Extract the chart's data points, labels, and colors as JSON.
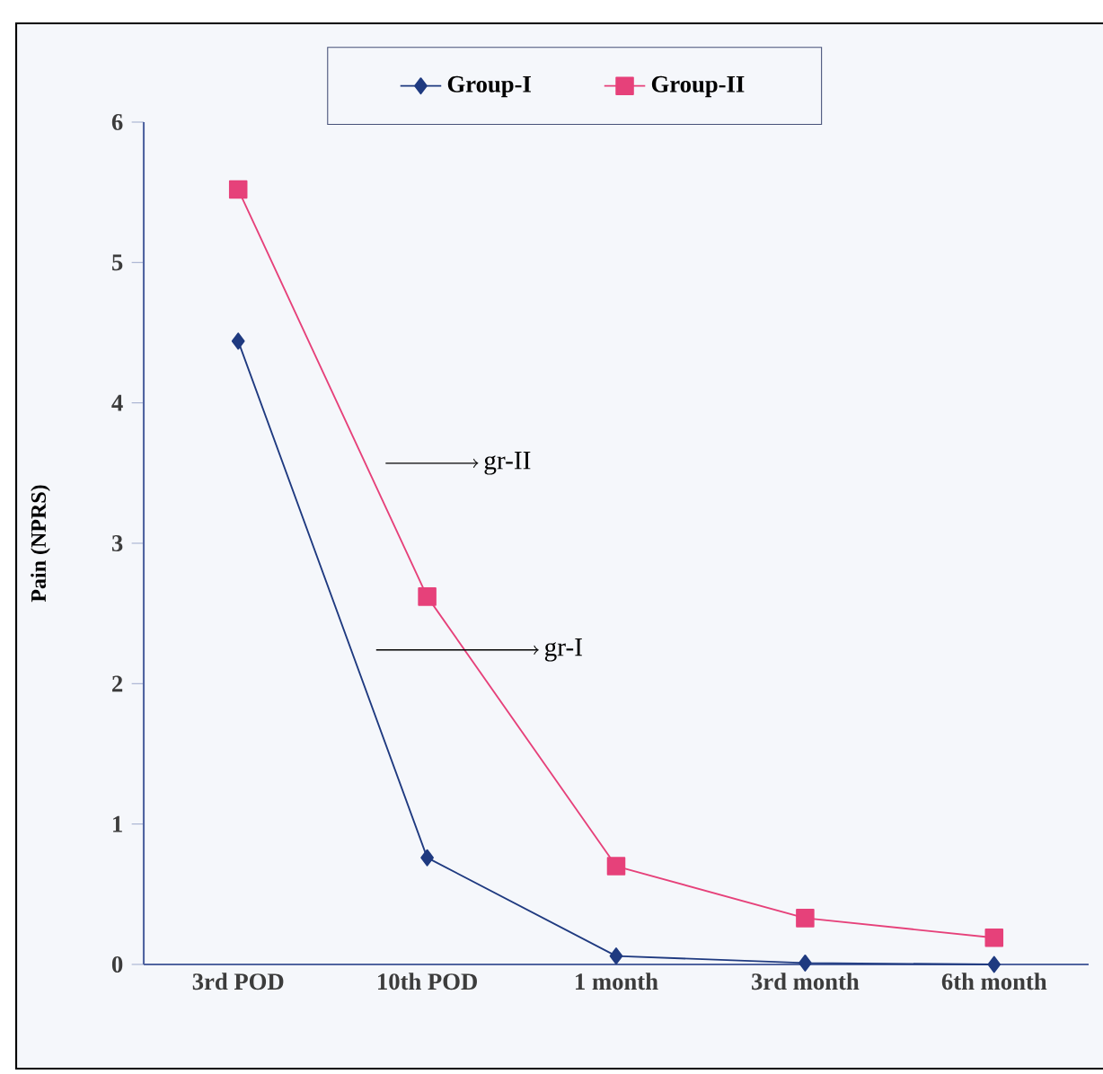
{
  "chart_data": {
    "type": "line",
    "ylabel": "Pain (NPRS)",
    "categories": [
      "3rd POD",
      "10th POD",
      "1 month",
      "3rd month",
      "6th month"
    ],
    "series": [
      {
        "name": "Group-I",
        "color": "#1f3a80",
        "marker": "diamond",
        "values": [
          4.44,
          0.76,
          0.06,
          0.01,
          0
        ]
      },
      {
        "name": "Group-II",
        "color": "#e6417a",
        "marker": "square",
        "values": [
          5.52,
          2.62,
          0.7,
          0.33,
          0.19
        ]
      }
    ],
    "ylim": [
      0,
      6
    ],
    "yticks": [
      0,
      1,
      2,
      3,
      4,
      5,
      6
    ],
    "legend": "top",
    "grid": false,
    "line_style": "solid",
    "annotations": [
      "gr-II",
      "gr-I"
    ]
  }
}
